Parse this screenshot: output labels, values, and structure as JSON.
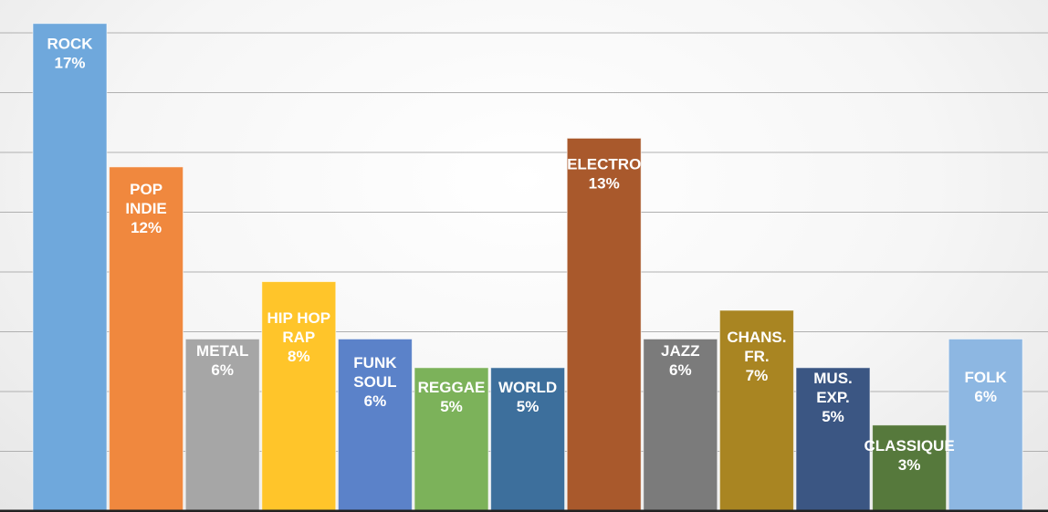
{
  "chart_data": {
    "type": "bar",
    "categories": [
      "ROCK",
      "POP INDIE",
      "METAL",
      "HIP HOP RAP",
      "FUNK SOUL",
      "REGGAE",
      "WORLD",
      "ELECTRO",
      "JAZZ",
      "CHANS. FR.",
      "MUS. EXP.",
      "CLASSIQUE",
      "FOLK"
    ],
    "label_lines": [
      [
        "ROCK"
      ],
      [
        "POP",
        "INDIE"
      ],
      [
        "METAL"
      ],
      [
        "HIP HOP",
        "RAP"
      ],
      [
        "FUNK",
        "SOUL"
      ],
      [
        "REGGAE"
      ],
      [
        "WORLD"
      ],
      [
        "ELECTRO"
      ],
      [
        "JAZZ"
      ],
      [
        "CHANS.",
        "FR."
      ],
      [
        "MUS.",
        "EXP."
      ],
      [
        "CLASSIQUE"
      ],
      [
        "FOLK"
      ]
    ],
    "values": [
      17,
      12,
      6,
      8,
      6,
      5,
      5,
      13,
      6,
      7,
      5,
      3,
      6
    ],
    "value_labels": [
      "17%",
      "12%",
      "6%",
      "8%",
      "6%",
      "5%",
      "5%",
      "13%",
      "6%",
      "7%",
      "5%",
      "3%",
      "6%"
    ],
    "colors": [
      "#6fa8dc",
      "#f0883e",
      "#a6a6a6",
      "#ffc52a",
      "#5b82c9",
      "#7cb25a",
      "#3d6f9c",
      "#a9592c",
      "#7b7b7b",
      "#a98522",
      "#3b5683",
      "#56793c",
      "#8db7e2"
    ],
    "ylim": [
      0,
      17.5
    ],
    "grid": true
  }
}
